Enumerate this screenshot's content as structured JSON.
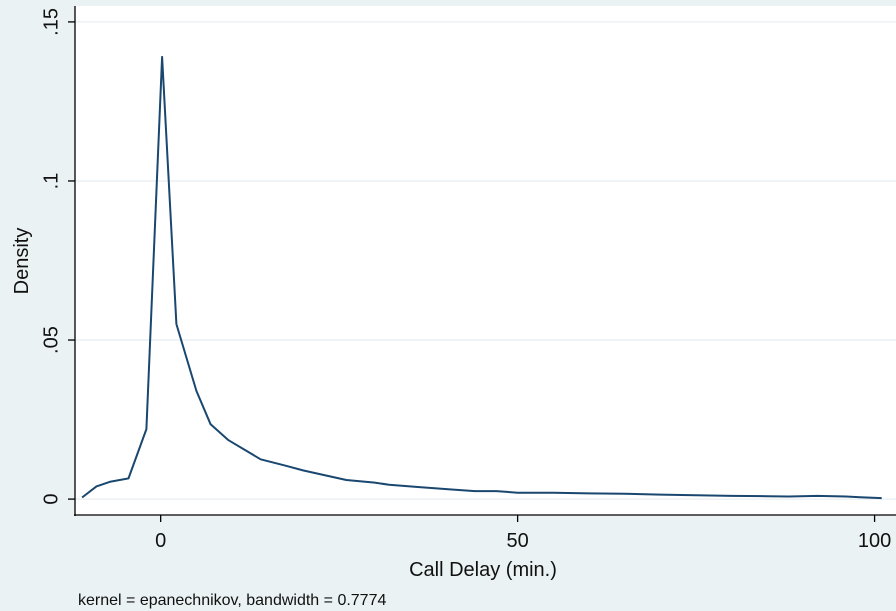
{
  "chart_data": {
    "type": "line",
    "title": "",
    "xlabel": "Call Delay (min.)",
    "ylabel": "Density",
    "note": "kernel = epanechnikov, bandwidth = 0.7774",
    "xlim": [
      -12,
      103
    ],
    "ylim": [
      -0.005,
      0.155
    ],
    "xticks": [
      0,
      50,
      100
    ],
    "xtick_labels": [
      "0",
      "50",
      "100"
    ],
    "yticks": [
      0,
      0.05,
      0.1,
      0.15
    ],
    "ytick_labels": [
      "0",
      ".05",
      ".1",
      ".15"
    ],
    "grid": true,
    "legend": "none",
    "colors": {
      "background": "#eaf2f3",
      "plot_area": "#ffffff",
      "line": "#1a476f",
      "grid": "#e8eef0",
      "axis": "#000000"
    },
    "series": [
      {
        "x": [
          -11,
          -9,
          -7,
          -4.5,
          -2,
          0.2,
          2.2,
          5,
          7,
          9.5,
          14,
          17.5,
          20,
          26,
          30,
          32,
          36,
          41,
          44,
          47,
          50,
          55,
          60,
          65,
          70,
          75,
          80,
          85,
          88,
          92,
          96,
          98,
          101
        ],
        "values": [
          0.0005,
          0.004,
          0.0055,
          0.0065,
          0.022,
          0.139,
          0.055,
          0.034,
          0.0235,
          0.0185,
          0.0125,
          0.0105,
          0.009,
          0.006,
          0.0052,
          0.0045,
          0.0038,
          0.003,
          0.0025,
          0.0025,
          0.002,
          0.002,
          0.0018,
          0.0017,
          0.0014,
          0.0012,
          0.001,
          0.0009,
          0.0008,
          0.001,
          0.0008,
          0.0006,
          0.0003
        ]
      }
    ]
  }
}
